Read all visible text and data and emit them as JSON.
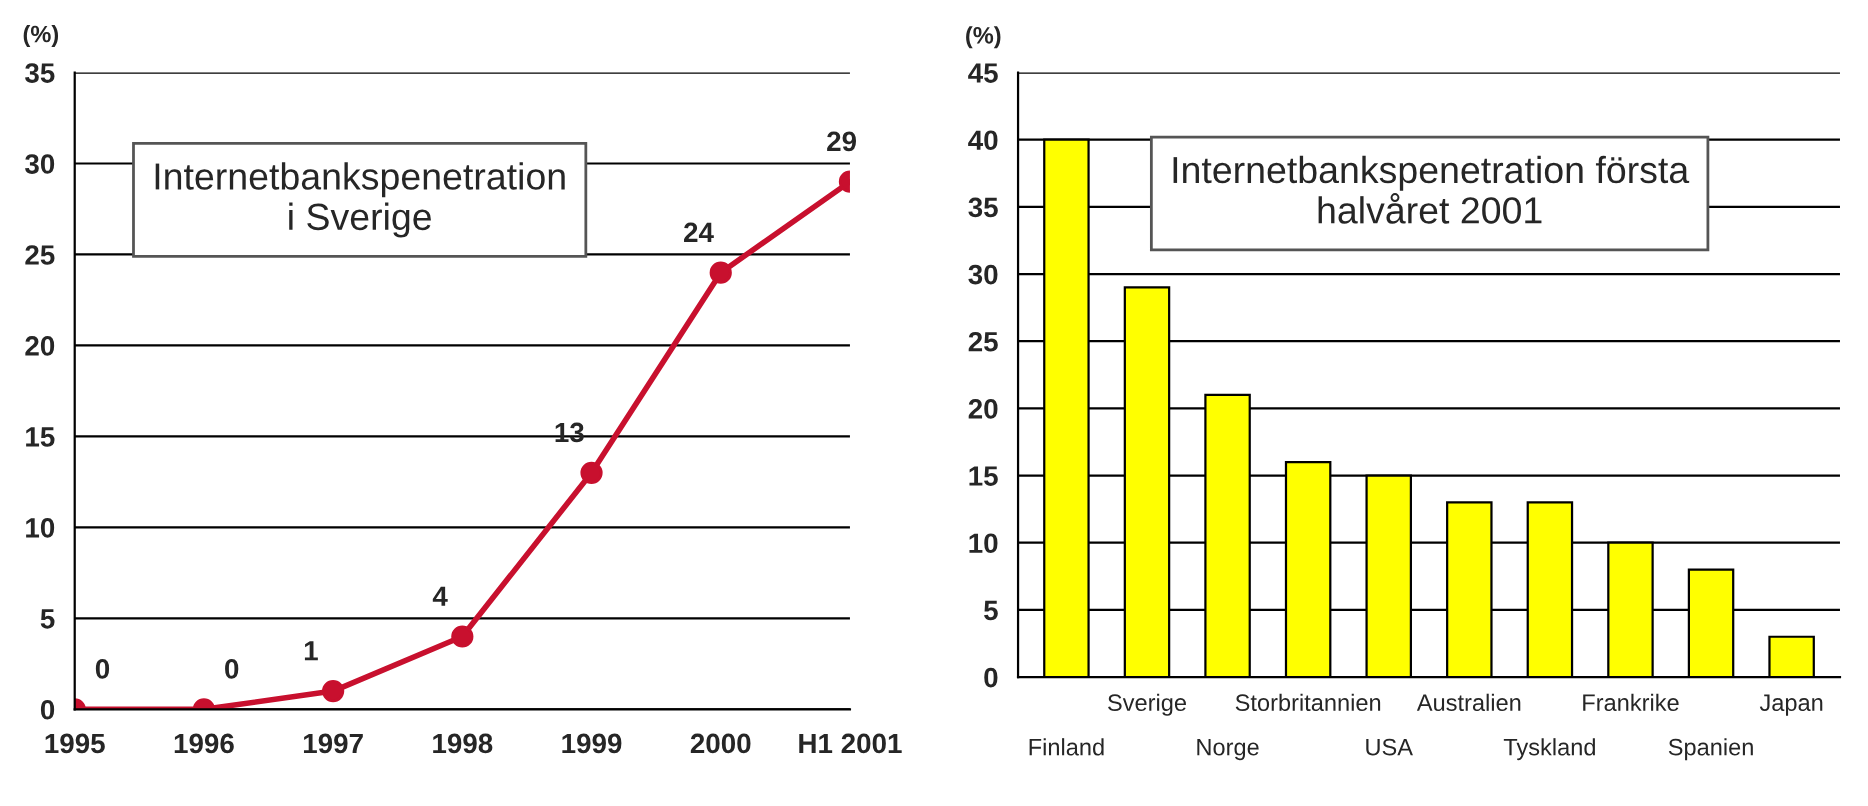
{
  "chart_data": [
    {
      "type": "line",
      "title": "Internetbankspenetration\ni Sverige",
      "ylabel": "(%)",
      "categories": [
        "1995",
        "1996",
        "1997",
        "1998",
        "1999",
        "2000",
        "H1 2001"
      ],
      "series": [
        {
          "color": "#c8102e",
          "values": [
            0,
            0,
            1,
            4,
            13,
            24,
            29
          ]
        }
      ],
      "ylim": [
        0,
        35
      ],
      "yticks": [
        0,
        5,
        10,
        15,
        20,
        25,
        30,
        35
      ],
      "grid": "y",
      "data_labels": true,
      "marker": "circle",
      "line_style": "solid"
    },
    {
      "type": "bar",
      "title": "Internetbankspenetration första\nhalvåret 2001",
      "ylabel": "(%)",
      "categories": [
        "Finland",
        "Sverige",
        "Norge",
        "Storbritannien",
        "USA",
        "Australien",
        "Tyskland",
        "Frankrike",
        "Spanien",
        "Japan"
      ],
      "series": [
        {
          "color": "#ffff00",
          "values": [
            40,
            29,
            21,
            16,
            15,
            13,
            13,
            10,
            8,
            3
          ]
        }
      ],
      "ylim": [
        0,
        45
      ],
      "yticks": [
        0,
        5,
        10,
        15,
        20,
        25,
        30,
        35,
        40,
        45
      ],
      "grid": "y"
    }
  ]
}
